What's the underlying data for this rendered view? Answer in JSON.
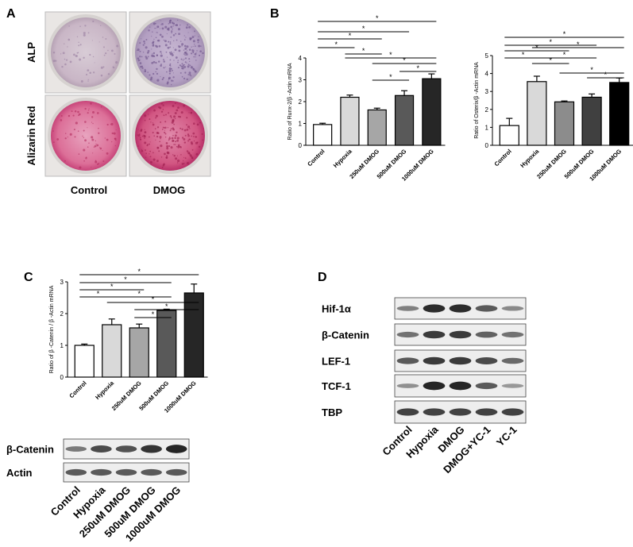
{
  "panel_labels": {
    "a": "A",
    "b": "B",
    "c": "C",
    "d": "D"
  },
  "panel_a": {
    "rows": [
      "ALP",
      "Alizarin Red"
    ],
    "columns": [
      "Control",
      "DMOG"
    ]
  },
  "panel_c_blot": {
    "rows": [
      "β-Catenin",
      "Actin"
    ],
    "lanes": [
      "Control",
      "Hypoxia",
      "250uM DMOG",
      "500uM DMOG",
      "1000uM DMOG"
    ]
  },
  "panel_d_blot": {
    "rows": [
      "Hif-1α",
      "β-Catenin",
      "LEF-1",
      "TCF-1",
      "TBP"
    ],
    "lanes": [
      "Control",
      "Hypoxia",
      "DMOG",
      "DMOG+YC-1",
      "YC-1"
    ]
  },
  "chart_data": [
    {
      "type": "bar",
      "y_label": "Ratio of Runx-2/β -Actin mRNA",
      "categories": [
        "Control",
        "Hypoxia",
        "250uM DMOG",
        "500uM DMOG",
        "1000uM DMOG"
      ],
      "values": [
        0.95,
        2.2,
        1.62,
        2.28,
        3.05
      ],
      "errors": [
        0.06,
        0.1,
        0.08,
        0.22,
        0.22
      ],
      "colors": [
        "#ffffff",
        "#d9d9d9",
        "#a6a6a6",
        "#595959",
        "#262626"
      ],
      "ylim": [
        0,
        4
      ],
      "yticks": [
        0,
        1,
        2,
        3,
        4
      ],
      "significance_label": "*"
    },
    {
      "type": "bar",
      "y_label": "Ratio of Osterix/β -Actin mRNA",
      "categories": [
        "Control",
        "Hypoxia",
        "250uM DMOG",
        "500uM DMOG",
        "1000uM DMOG"
      ],
      "values": [
        1.1,
        3.55,
        2.42,
        2.68,
        3.5
      ],
      "errors": [
        0.4,
        0.3,
        0.05,
        0.18,
        0.25
      ],
      "colors": [
        "#ffffff",
        "#d9d9d9",
        "#8c8c8c",
        "#404040",
        "#000000"
      ],
      "ylim": [
        0,
        5
      ],
      "yticks": [
        0,
        1,
        2,
        3,
        4,
        5
      ],
      "significance_label": "*"
    },
    {
      "type": "bar",
      "y_label": "Ratio of β -Catenin / β -Actin mRNA",
      "categories": [
        "Control",
        "Hypoxia",
        "250uM DMOG",
        "500uM DMOG",
        "1000uM DMOG"
      ],
      "values": [
        1.0,
        1.65,
        1.55,
        2.1,
        2.65
      ],
      "errors": [
        0.04,
        0.18,
        0.12,
        0.04,
        0.28
      ],
      "colors": [
        "#ffffff",
        "#d9d9d9",
        "#a6a6a6",
        "#595959",
        "#262626"
      ],
      "ylim": [
        0,
        3
      ],
      "yticks": [
        0,
        1,
        2,
        3
      ],
      "significance_label": "*"
    }
  ]
}
